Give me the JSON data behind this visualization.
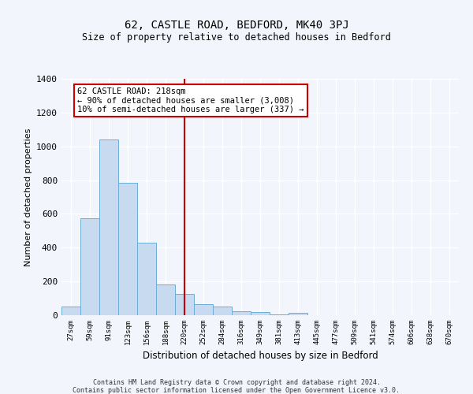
{
  "title": "62, CASTLE ROAD, BEDFORD, MK40 3PJ",
  "subtitle": "Size of property relative to detached houses in Bedford",
  "xlabel": "Distribution of detached houses by size in Bedford",
  "ylabel": "Number of detached properties",
  "bar_labels": [
    "27sqm",
    "59sqm",
    "91sqm",
    "123sqm",
    "156sqm",
    "188sqm",
    "220sqm",
    "252sqm",
    "284sqm",
    "316sqm",
    "349sqm",
    "381sqm",
    "413sqm",
    "445sqm",
    "477sqm",
    "509sqm",
    "541sqm",
    "574sqm",
    "606sqm",
    "638sqm",
    "670sqm"
  ],
  "bar_values": [
    50,
    575,
    1040,
    785,
    430,
    180,
    125,
    65,
    50,
    22,
    18,
    5,
    12,
    0,
    0,
    0,
    0,
    0,
    0,
    0,
    0
  ],
  "bar_color": "#c8daf0",
  "bar_edge_color": "#6baed6",
  "vline_x_index": 6,
  "vline_color": "#cc0000",
  "annotation_text": "62 CASTLE ROAD: 218sqm\n← 90% of detached houses are smaller (3,008)\n10% of semi-detached houses are larger (337) →",
  "annotation_box_color": "#cc0000",
  "ylim": [
    0,
    1400
  ],
  "yticks": [
    0,
    200,
    400,
    600,
    800,
    1000,
    1200,
    1400
  ],
  "footer1": "Contains HM Land Registry data © Crown copyright and database right 2024.",
  "footer2": "Contains public sector information licensed under the Open Government Licence v3.0.",
  "bg_color": "#f2f5fb",
  "plot_bg_color": "#f2f5fb"
}
